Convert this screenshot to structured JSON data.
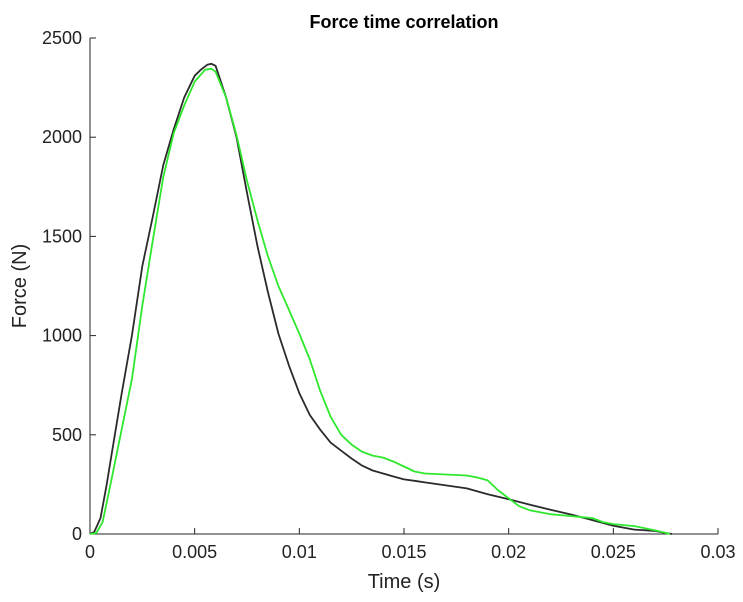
{
  "chart_data": {
    "type": "line",
    "title": "Force time correlation",
    "xlabel": "Time (s)",
    "ylabel": "Force (N)",
    "xlim": [
      0,
      0.03
    ],
    "ylim": [
      0,
      2500
    ],
    "x_ticks": [
      0,
      0.005,
      0.01,
      0.015,
      0.02,
      0.025,
      0.03
    ],
    "x_tick_labels": [
      "0",
      "0.005",
      "0.01",
      "0.015",
      "0.02",
      "0.025",
      "0.03"
    ],
    "y_ticks": [
      0,
      500,
      1000,
      1500,
      2000,
      2500
    ],
    "y_tick_labels": [
      "0",
      "500",
      "1000",
      "1500",
      "2000",
      "2500"
    ],
    "grid": false,
    "legend": "none",
    "series": [
      {
        "color": "#2b2b2b",
        "x": [
          0,
          0.0002,
          0.0005,
          0.0008,
          0.001,
          0.0015,
          0.002,
          0.0025,
          0.003,
          0.0035,
          0.004,
          0.0045,
          0.005,
          0.0053,
          0.0056,
          0.0058,
          0.006,
          0.0065,
          0.007,
          0.0075,
          0.008,
          0.0085,
          0.009,
          0.0095,
          0.01,
          0.0105,
          0.011,
          0.0115,
          0.012,
          0.0125,
          0.013,
          0.0135,
          0.014,
          0.0145,
          0.015,
          0.0155,
          0.016,
          0.017,
          0.018,
          0.019,
          0.02,
          0.021,
          0.022,
          0.023,
          0.024,
          0.025,
          0.026,
          0.027,
          0.0275,
          0.0278
        ],
        "y": [
          0,
          10,
          80,
          250,
          380,
          700,
          1000,
          1350,
          1600,
          1860,
          2040,
          2200,
          2310,
          2340,
          2365,
          2370,
          2360,
          2200,
          2000,
          1720,
          1450,
          1220,
          1010,
          850,
          710,
          600,
          525,
          460,
          420,
          380,
          345,
          320,
          305,
          290,
          275,
          268,
          260,
          245,
          230,
          200,
          175,
          148,
          122,
          98,
          70,
          42,
          22,
          15,
          5,
          0
        ]
      },
      {
        "color": "#2ee82e",
        "x": [
          0,
          0.0003,
          0.0006,
          0.001,
          0.0015,
          0.002,
          0.0025,
          0.003,
          0.0035,
          0.004,
          0.0045,
          0.005,
          0.0055,
          0.0058,
          0.006,
          0.0065,
          0.007,
          0.0075,
          0.008,
          0.0085,
          0.009,
          0.0095,
          0.01,
          0.0105,
          0.011,
          0.0115,
          0.012,
          0.0125,
          0.013,
          0.0135,
          0.014,
          0.0145,
          0.015,
          0.0155,
          0.016,
          0.017,
          0.018,
          0.0185,
          0.019,
          0.0195,
          0.02,
          0.0205,
          0.021,
          0.022,
          0.023,
          0.024,
          0.0245,
          0.025,
          0.026,
          0.027,
          0.0277
        ],
        "y": [
          0,
          5,
          60,
          260,
          520,
          780,
          1150,
          1480,
          1800,
          2020,
          2160,
          2280,
          2340,
          2345,
          2330,
          2200,
          2010,
          1780,
          1580,
          1400,
          1250,
          1130,
          1010,
          880,
          720,
          590,
          500,
          450,
          415,
          395,
          385,
          365,
          340,
          315,
          305,
          300,
          295,
          285,
          270,
          220,
          180,
          140,
          120,
          100,
          90,
          80,
          60,
          50,
          40,
          18,
          0
        ]
      }
    ]
  }
}
